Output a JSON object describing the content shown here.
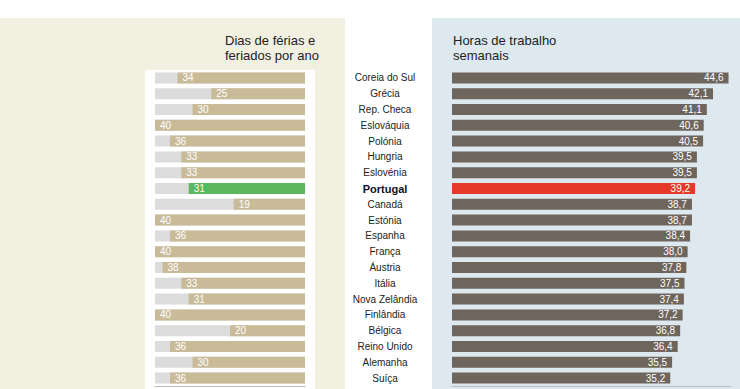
{
  "chart_data": [
    {
      "type": "bar",
      "orientation": "horizontal",
      "title": "Dias de férias e feriados por ano",
      "categories": [
        "Coreia do Sul",
        "Grécia",
        "Rep. Checa",
        "Eslováquia",
        "Polónia",
        "Hungria",
        "Eslovénia",
        "Portugal",
        "Canadá",
        "Estónia",
        "Espanha",
        "França",
        "Áustria",
        "Itália",
        "Nova Zelândia",
        "Finlândia",
        "Bélgica",
        "Reino Unido",
        "Alemanha",
        "Suíça"
      ],
      "values": [
        34,
        25,
        30,
        40,
        36,
        33,
        33,
        31,
        19,
        40,
        36,
        40,
        38,
        33,
        31,
        40,
        20,
        36,
        30,
        36
      ],
      "colors": [
        "#c9bb98",
        "#c9bb98",
        "#c9bb98",
        "#c9bb98",
        "#c9bb98",
        "#c9bb98",
        "#c9bb98",
        "#5cb85c",
        "#c9bb98",
        "#c9bb98",
        "#c9bb98",
        "#c9bb98",
        "#c9bb98",
        "#c9bb98",
        "#c9bb98",
        "#c9bb98",
        "#c9bb98",
        "#c9bb98",
        "#c9bb98",
        "#c9bb98"
      ],
      "xlim": [
        0,
        40
      ],
      "data_labels": true,
      "tick_labels": false,
      "grid": false
    },
    {
      "type": "bar",
      "orientation": "horizontal",
      "title": "Horas de trabalho semanais",
      "categories": [
        "Coreia do Sul",
        "Grécia",
        "Rep. Checa",
        "Eslováquia",
        "Polónia",
        "Hungria",
        "Eslovénia",
        "Portugal",
        "Canadá",
        "Estónia",
        "Espanha",
        "França",
        "Áustria",
        "Itália",
        "Nova Zelândia",
        "Finlândia",
        "Bélgica",
        "Reino Unido",
        "Alemanha",
        "Suíça"
      ],
      "values": [
        44.6,
        42.1,
        41.1,
        40.6,
        40.5,
        39.5,
        39.5,
        39.2,
        38.7,
        38.7,
        38.4,
        38.0,
        37.8,
        37.5,
        37.4,
        37.2,
        36.8,
        36.4,
        35.5,
        35.2
      ],
      "value_labels": [
        "44,6",
        "42,1",
        "41,1",
        "40,6",
        "40,5",
        "39,5",
        "39,5",
        "39,2",
        "38,7",
        "38,7",
        "38,4",
        "38,0",
        "37,8",
        "37,5",
        "37,4",
        "37,2",
        "36,8",
        "36,4",
        "35,5",
        "35,2"
      ],
      "colors": [
        "#6e655c",
        "#6e655c",
        "#6e655c",
        "#6e655c",
        "#6e655c",
        "#6e655c",
        "#6e655c",
        "#e4392b",
        "#6e655c",
        "#6e655c",
        "#6e655c",
        "#6e655c",
        "#6e655c",
        "#6e655c",
        "#6e655c",
        "#6e655c",
        "#6e655c",
        "#6e655c",
        "#6e655c",
        "#6e655c"
      ],
      "xlim": [
        0,
        45
      ],
      "data_labels": true,
      "tick_labels": false,
      "grid": false
    }
  ]
}
